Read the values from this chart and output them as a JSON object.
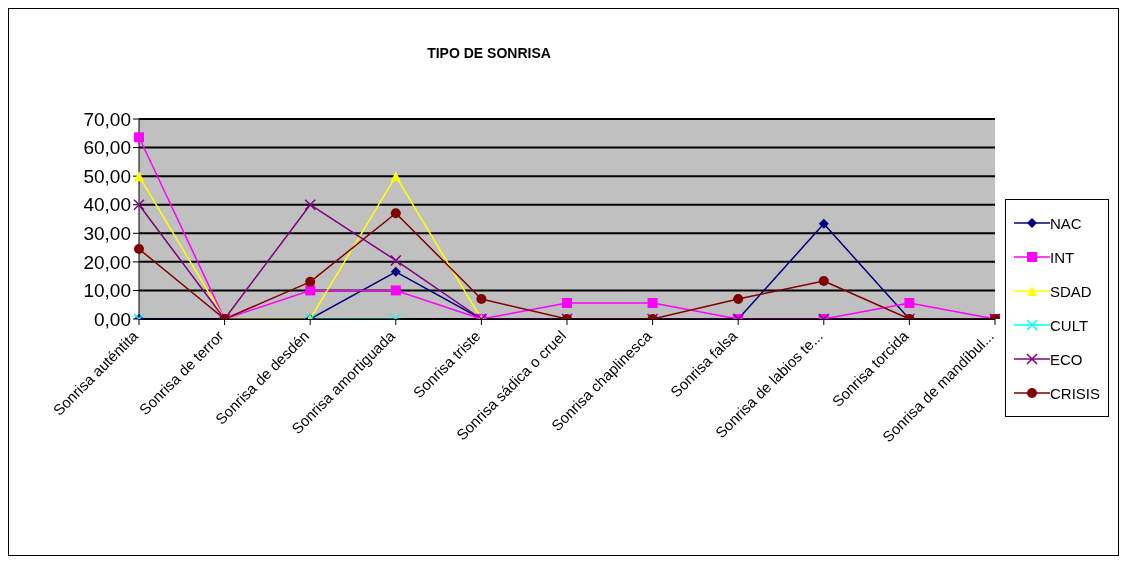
{
  "chart_data": {
    "type": "line",
    "title": "TIPO DE SONRISA",
    "categories": [
      "Sonrisa auténtita",
      "Sonrisa de terror",
      "Sonrisa de desdén",
      "Sonrisa amortiguada",
      "Sonrisa triste",
      "Sonrisa sádica o cruel",
      "Sonrisa chaplinesca",
      "Sonrisa falsa",
      "Sonrisa de labios te...",
      "Sonrisa torcida",
      "Sonrisa de mandíbul..."
    ],
    "series": [
      {
        "name": "NAC",
        "color": "#000080",
        "marker": "diamond",
        "values": [
          0,
          0,
          0,
          16.5,
          0,
          0,
          0,
          0,
          33.3,
          0,
          0
        ]
      },
      {
        "name": "INT",
        "color": "#ff00ff",
        "marker": "square",
        "values": [
          63.6,
          0,
          10,
          10,
          0,
          5.6,
          5.6,
          0,
          0,
          5.6,
          0
        ]
      },
      {
        "name": "SDAD",
        "color": "#ffff00",
        "marker": "triangle",
        "values": [
          50,
          0,
          0,
          50,
          0,
          null,
          null,
          null,
          null,
          null,
          null
        ]
      },
      {
        "name": "CULT",
        "color": "#00ffff",
        "marker": "cross",
        "values": [
          0,
          null,
          0,
          0,
          null,
          null,
          null,
          null,
          null,
          null,
          null
        ]
      },
      {
        "name": "ECO",
        "color": "#800080",
        "marker": "cross",
        "values": [
          40,
          0,
          40,
          20.5,
          0,
          0,
          0,
          0,
          0,
          0,
          0
        ]
      },
      {
        "name": "CRISIS",
        "color": "#800000",
        "marker": "circle",
        "values": [
          24.5,
          0,
          13,
          37,
          7,
          0,
          0,
          7,
          13.3,
          0,
          0
        ]
      }
    ],
    "ylim": [
      0,
      70
    ],
    "yticks": [
      {
        "value": 0,
        "label": "0,00"
      },
      {
        "value": 10,
        "label": "10,00"
      },
      {
        "value": 20,
        "label": "20,00"
      },
      {
        "value": 30,
        "label": "30,00"
      },
      {
        "value": 40,
        "label": "40,00"
      },
      {
        "value": 50,
        "label": "50,00"
      },
      {
        "value": 60,
        "label": "60,00"
      },
      {
        "value": 70,
        "label": "70,00"
      }
    ],
    "grid": "y",
    "legend": "right",
    "line_style": "solid"
  }
}
